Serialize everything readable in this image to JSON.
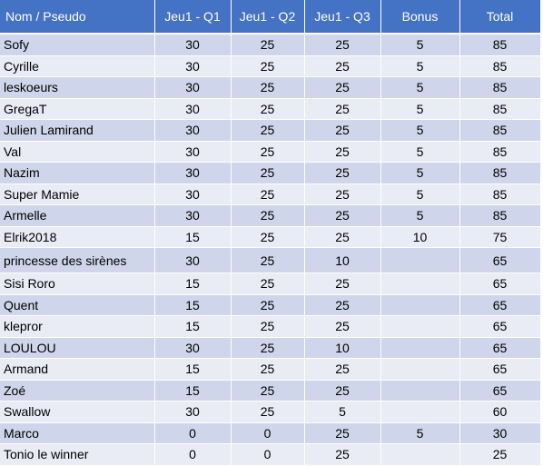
{
  "table": {
    "headers": [
      "Nom / Pseudo",
      "Jeu1 - Q1",
      "Jeu1 - Q2",
      "Jeu1 - Q3",
      "Bonus",
      "Total"
    ],
    "rows": [
      [
        "Sofy",
        "30",
        "25",
        "25",
        "5",
        "85"
      ],
      [
        "Cyrille",
        "30",
        "25",
        "25",
        "5",
        "85"
      ],
      [
        "leskoeurs",
        "30",
        "25",
        "25",
        "5",
        "85"
      ],
      [
        "GregaT",
        "30",
        "25",
        "25",
        "5",
        "85"
      ],
      [
        "Julien Lamirand",
        "30",
        "25",
        "25",
        "5",
        "85"
      ],
      [
        "Val",
        "30",
        "25",
        "25",
        "5",
        "85"
      ],
      [
        "Nazim",
        "30",
        "25",
        "25",
        "5",
        "85"
      ],
      [
        "Super Mamie",
        "30",
        "25",
        "25",
        "5",
        "85"
      ],
      [
        "Armelle",
        "30",
        "25",
        "25",
        "5",
        "85"
      ],
      [
        "Elrik2018",
        "15",
        "25",
        "25",
        "10",
        "75"
      ],
      [
        "princesse des sirènes",
        "30",
        "25",
        "10",
        "",
        "65"
      ],
      [
        "Sisi Roro",
        "15",
        "25",
        "25",
        "",
        "65"
      ],
      [
        "Quent",
        "15",
        "25",
        "25",
        "",
        "65"
      ],
      [
        "klepror",
        "15",
        "25",
        "25",
        "",
        "65"
      ],
      [
        "LOULOU",
        "30",
        "25",
        "10",
        "",
        "65"
      ],
      [
        "Armand",
        "15",
        "25",
        "25",
        "",
        "65"
      ],
      [
        "Zoé",
        "15",
        "25",
        "25",
        "",
        "65"
      ],
      [
        "Swallow",
        "30",
        "25",
        "5",
        "",
        "60"
      ],
      [
        "Marco",
        "0",
        "0",
        "25",
        "5",
        "30"
      ],
      [
        "Tonio le winner",
        "0",
        "0",
        "25",
        "",
        "25"
      ]
    ]
  },
  "colors": {
    "header": "#4472c4",
    "row_odd": "#cfd5ea",
    "row_even": "#e9ebf5"
  }
}
